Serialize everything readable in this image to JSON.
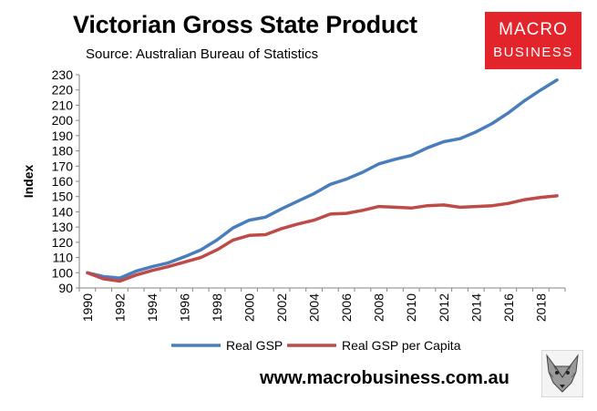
{
  "header": {
    "title": "Victorian Gross State Product",
    "subtitle": "Source: Australian Bureau of Statistics"
  },
  "logo": {
    "line1": "MACRO",
    "line2": "BUSINESS",
    "color": "#e3242b"
  },
  "footer": {
    "url": "www.macrobusiness.com.au"
  },
  "chart_data": {
    "type": "line",
    "ylabel": "Index",
    "xlabel": "",
    "ylim": [
      90,
      230
    ],
    "yticks": [
      90,
      100,
      110,
      120,
      130,
      140,
      150,
      160,
      170,
      180,
      190,
      200,
      210,
      220,
      230
    ],
    "xlim": [
      1990,
      2019
    ],
    "xtick_labels": [
      "1990",
      "1992",
      "1994",
      "1996",
      "1998",
      "2000",
      "2002",
      "2004",
      "2006",
      "2008",
      "2010",
      "2012",
      "2014",
      "2016",
      "2018"
    ],
    "grid": false,
    "legend_position": "bottom",
    "x": [
      1990,
      1991,
      1992,
      1993,
      1994,
      1995,
      1996,
      1997,
      1998,
      1999,
      2000,
      2001,
      2002,
      2003,
      2004,
      2005,
      2006,
      2007,
      2008,
      2009,
      2010,
      2011,
      2012,
      2013,
      2014,
      2015,
      2016,
      2017,
      2018,
      2019
    ],
    "series": [
      {
        "name": "Real GSP",
        "color": "#4a7ebb",
        "values": [
          100,
          97.5,
          96.5,
          101,
          104,
          106.5,
          110.5,
          115,
          121.5,
          129.5,
          134.5,
          136.5,
          142,
          147,
          152,
          158,
          161.5,
          166,
          171.5,
          174.5,
          177,
          182,
          186,
          188,
          192.5,
          198,
          205,
          213,
          220,
          226.5
        ]
      },
      {
        "name": "Real GSP per Capita",
        "color": "#be4b48",
        "values": [
          100,
          96,
          94.5,
          98.5,
          101.5,
          104,
          107,
          110,
          115,
          121.5,
          124.5,
          125,
          129,
          132,
          134.5,
          138.5,
          139,
          141,
          143.5,
          143,
          142.5,
          144,
          144.5,
          143,
          143.5,
          144,
          145.5,
          148,
          149.5,
          150.5
        ]
      }
    ]
  }
}
